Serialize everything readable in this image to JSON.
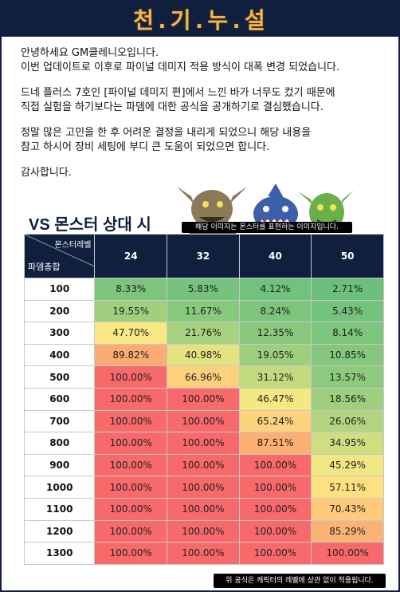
{
  "header": {
    "title": "천.기.누.설"
  },
  "paragraphs": [
    [
      "안녕하세요 GM클레니오입니다.",
      "이번 업데이트로 이후로 파이널 데미지 적용 방식이 대폭 변경 되었습니다."
    ],
    [
      "드네 플러스 7호인 [파이널 데미지 편]에서 느낀 바가 너무도 컸기 때문에",
      "직접 실험을 하기보다는 파뎀에 대한 공식을 공개하기로 결심했습니다."
    ],
    [
      "정말 많은 고민을 한 후 어려운 결정을 내리게 되었으니 해당 내용을",
      "참고 하시어 장비 세팅에 부디 큰 도움이 되었으면 합니다."
    ],
    [
      "감사합니다."
    ]
  ],
  "table": {
    "title": "VS 몬스터 상대 시",
    "image_caption": "해당 이미지는 몬스터를 표현하는 이미지입니다.",
    "corner_top": "몬스터레벨",
    "corner_bottom": "파뎀총합",
    "levels": [
      "24",
      "32",
      "40",
      "50"
    ],
    "rows": [
      {
        "label": "100",
        "values": [
          "8.33%",
          "5.83%",
          "4.12%",
          "2.71%"
        ]
      },
      {
        "label": "200",
        "values": [
          "19.55%",
          "11.67%",
          "8.24%",
          "5.43%"
        ]
      },
      {
        "label": "300",
        "values": [
          "47.70%",
          "21.76%",
          "12.35%",
          "8.14%"
        ]
      },
      {
        "label": "400",
        "values": [
          "89.82%",
          "40.98%",
          "19.05%",
          "10.85%"
        ]
      },
      {
        "label": "500",
        "values": [
          "100.00%",
          "66.96%",
          "31.12%",
          "13.57%"
        ]
      },
      {
        "label": "600",
        "values": [
          "100.00%",
          "100.00%",
          "46.47%",
          "18.56%"
        ]
      },
      {
        "label": "700",
        "values": [
          "100.00%",
          "100.00%",
          "65.24%",
          "26.06%"
        ]
      },
      {
        "label": "800",
        "values": [
          "100.00%",
          "100.00%",
          "87.51%",
          "34.95%"
        ]
      },
      {
        "label": "900",
        "values": [
          "100.00%",
          "100.00%",
          "100.00%",
          "45.29%"
        ]
      },
      {
        "label": "1000",
        "values": [
          "100.00%",
          "100.00%",
          "100.00%",
          "57.11%"
        ]
      },
      {
        "label": "1100",
        "values": [
          "100.00%",
          "100.00%",
          "100.00%",
          "70.43%"
        ]
      },
      {
        "label": "1200",
        "values": [
          "100.00%",
          "100.00%",
          "100.00%",
          "85.29%"
        ]
      },
      {
        "label": "1300",
        "values": [
          "100.00%",
          "100.00%",
          "100.00%",
          "100.00%"
        ]
      }
    ],
    "footnote": "위 공식은 캐릭터의 레벨에 상관 없이 적용됩니다."
  },
  "colors": {
    "header_bg": "#0f1f3d",
    "title_gold": "#f2b64a",
    "green": "#63be7b",
    "red": "#f8696b",
    "yellow": "#ffeb84"
  }
}
